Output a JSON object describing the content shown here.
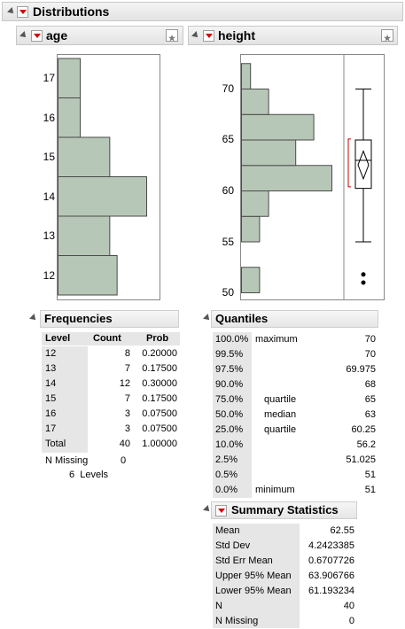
{
  "title": "Distributions",
  "age": {
    "label": "age",
    "ticks": [
      "17",
      "16",
      "15",
      "14",
      "13",
      "12"
    ],
    "chart_data": {
      "type": "bar",
      "orientation": "horizontal",
      "categories": [
        12,
        13,
        14,
        15,
        16,
        17
      ],
      "values": [
        8,
        7,
        12,
        7,
        3,
        3
      ]
    }
  },
  "height": {
    "label": "height",
    "ticks": [
      "70",
      "65",
      "60",
      "55",
      "50"
    ],
    "chart_data": {
      "type": "bar",
      "orientation": "horizontal",
      "bins": [
        "50-52.5",
        "52.5-55",
        "55-57.5",
        "57.5-60",
        "60-62.5",
        "62.5-65",
        "65-67.5",
        "67.5-70",
        "70-72.5"
      ],
      "values": [
        2,
        0,
        2,
        3,
        10,
        6,
        8,
        3,
        1
      ],
      "box": {
        "min": 51,
        "q1": 60.25,
        "median": 63,
        "q3": 65,
        "max": 70,
        "whisker_low": 55,
        "outliers": [
          51,
          51.8
        ],
        "mean": 62.55,
        "ci_low": 61.19,
        "ci_high": 63.91
      }
    },
    "colors": {
      "bar": "#b7c7b7",
      "bar_border": "#4a4a4a",
      "mean_bracket": "#c00000"
    }
  },
  "frequencies": {
    "title": "Frequencies",
    "headers": [
      "Level",
      "Count",
      "Prob"
    ],
    "rows": [
      [
        "12",
        "8",
        "0.20000"
      ],
      [
        "13",
        "7",
        "0.17500"
      ],
      [
        "14",
        "12",
        "0.30000"
      ],
      [
        "15",
        "7",
        "0.17500"
      ],
      [
        "16",
        "3",
        "0.07500"
      ],
      [
        "17",
        "3",
        "0.07500"
      ],
      [
        "Total",
        "40",
        "1.00000"
      ]
    ],
    "n_missing_label": "N Missing",
    "n_missing_value": "0",
    "levels": "6  Levels"
  },
  "quantiles": {
    "title": "Quantiles",
    "rows": [
      [
        "100.0%",
        "maximum",
        "70"
      ],
      [
        "99.5%",
        "",
        "70"
      ],
      [
        "97.5%",
        "",
        "69.975"
      ],
      [
        "90.0%",
        "",
        "68"
      ],
      [
        "75.0%",
        "quartile",
        "65"
      ],
      [
        "50.0%",
        "median",
        "63"
      ],
      [
        "25.0%",
        "quartile",
        "60.25"
      ],
      [
        "10.0%",
        "",
        "56.2"
      ],
      [
        "2.5%",
        "",
        "51.025"
      ],
      [
        "0.5%",
        "",
        "51"
      ],
      [
        "0.0%",
        "minimum",
        "51"
      ]
    ]
  },
  "summary": {
    "title": "Summary Statistics",
    "rows": [
      [
        "Mean",
        "62.55"
      ],
      [
        "Std Dev",
        "4.2423385"
      ],
      [
        "Std Err Mean",
        "0.6707726"
      ],
      [
        "Upper 95% Mean",
        "63.906766"
      ],
      [
        "Lower 95% Mean",
        "61.193234"
      ],
      [
        "N",
        "40"
      ],
      [
        "N Missing",
        "0"
      ]
    ]
  }
}
